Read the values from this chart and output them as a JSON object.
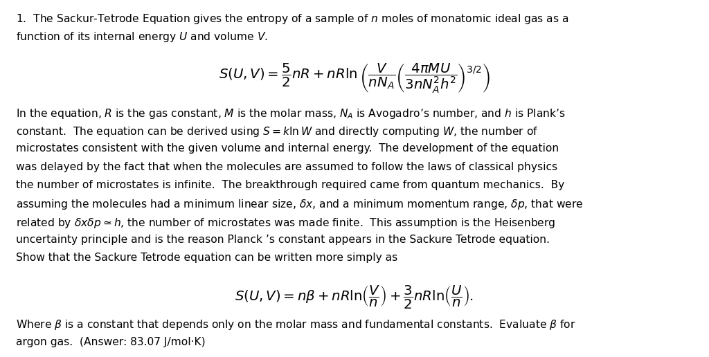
{
  "background_color": "#ffffff",
  "text_color": "#000000",
  "figsize": [
    10.24,
    5.16
  ],
  "dpi": 100,
  "line1_p1": "1.  The Sackur-Tetrode Equation gives the entropy of a sample of $n$ moles of monatomic ideal gas as a",
  "line2_p1": "function of its internal energy $U$ and volume $V$.",
  "eq1": "$S(U,V) = \\dfrac{5}{2}nR + nR\\ln\\left(\\dfrac{V}{nN_A}\\left(\\dfrac{4\\pi MU}{3nN_A^2h^2}\\right)^{3/2}\\right)$",
  "p2_lines": [
    "In the equation, $R$ is the gas constant, $M$ is the molar mass, $N_A$ is Avogadro’s number, and $h$ is Plank’s",
    "constant.  The equation can be derived using $S = k\\ln W$ and directly computing $W$, the number of",
    "microstates consistent with the given volume and internal energy.  The development of the equation",
    "was delayed by the fact that when the molecules are assumed to follow the laws of classical physics",
    "the number of microstates is infinite.  The breakthrough required came from quantum mechanics.  By",
    "assuming the molecules had a minimum linear size, $\\delta x$, and a minimum momentum range, $\\delta p$, that were",
    "related by $\\delta x\\delta p \\simeq h$, the number of microstates was made finite.  This assumption is the Heisenberg",
    "uncertainty principle and is the reason Planck ’s constant appears in the Sackure Tetrode equation.",
    "Show that the Sackure Tetrode equation can be written more simply as"
  ],
  "eq2": "$S(U,V) = n\\beta + nR\\ln\\!\\left(\\dfrac{V}{n}\\right) + \\dfrac{3}{2}nR\\ln\\!\\left(\\dfrac{U}{n}\\right).$",
  "p3_lines": [
    "Where $\\beta$ is a constant that depends only on the molar mass and fundamental constants.  Evaluate $\\beta$ for",
    "argon gas.  (Answer: 83.07 J/mol·K)"
  ]
}
